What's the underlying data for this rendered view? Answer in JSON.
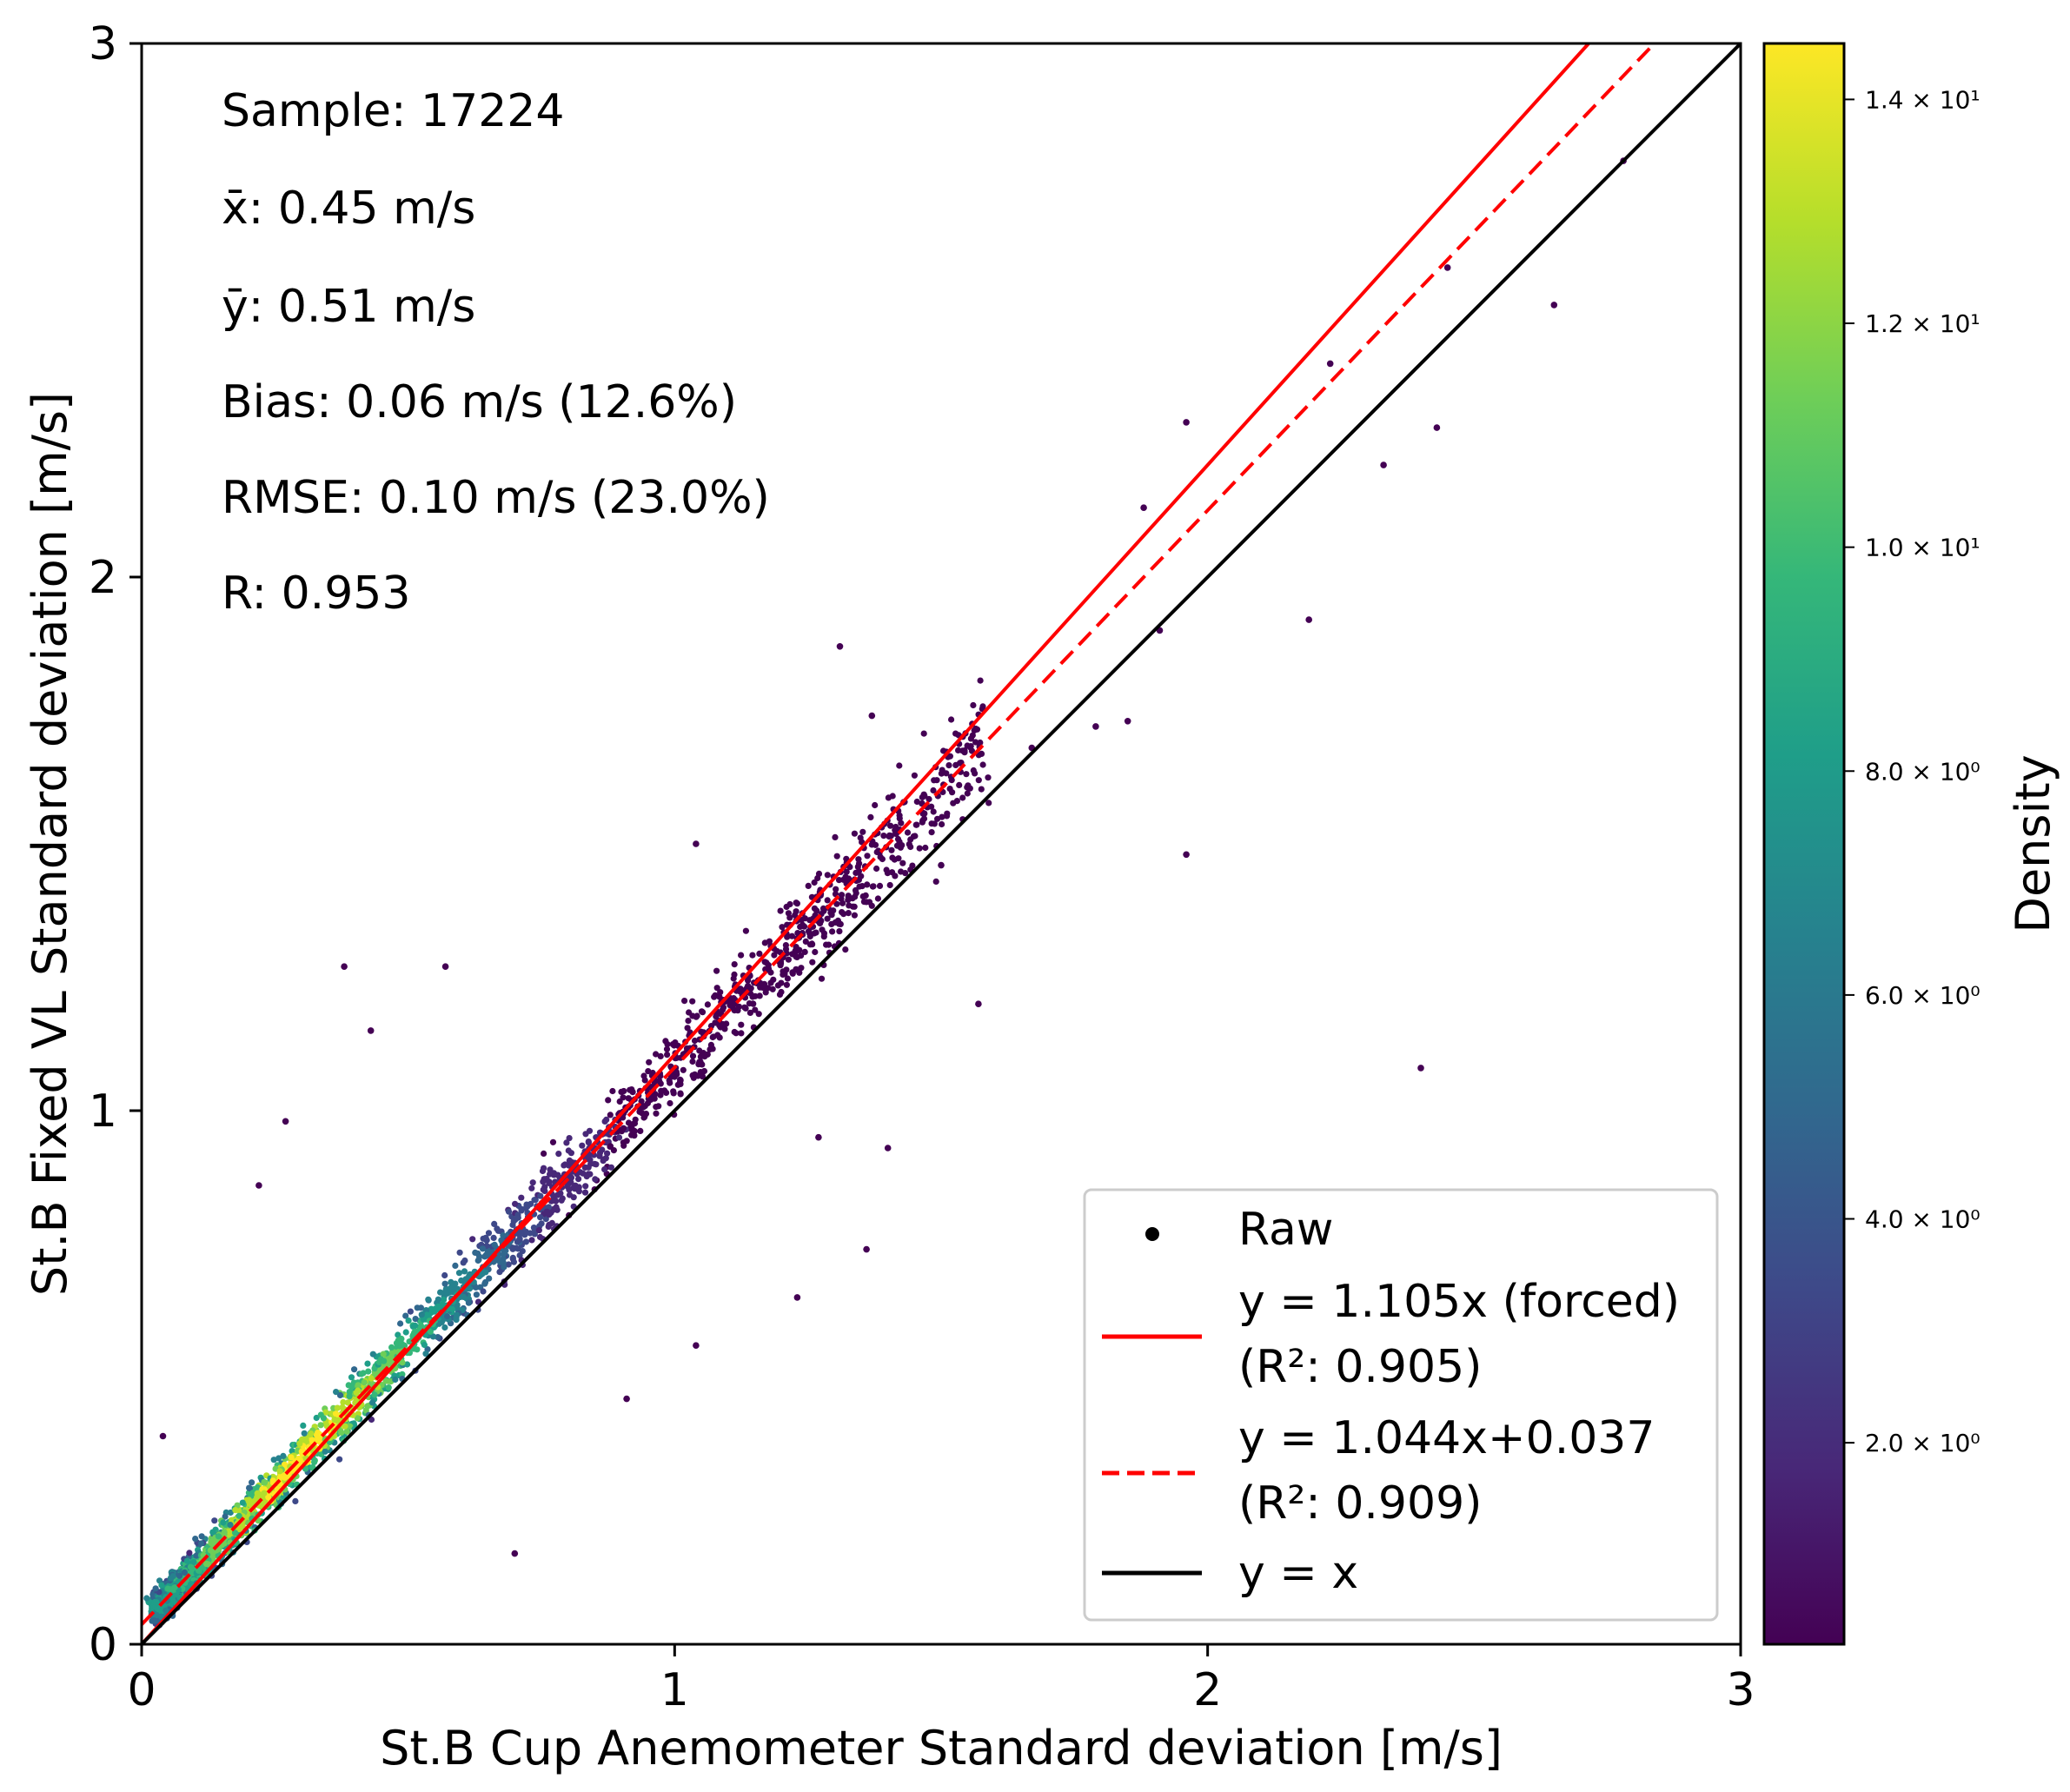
{
  "chart_data": {
    "type": "scatter",
    "subtype": "density-scatter",
    "xlabel": "St.B Cup Anemometer Standard deviation [m/s]",
    "ylabel": "St.B Fixed VL Standard deviation [m/s]",
    "xlim": [
      0,
      3
    ],
    "ylim": [
      0,
      3
    ],
    "xticks": [
      0,
      1,
      2,
      3
    ],
    "yticks": [
      0,
      1,
      2,
      3
    ],
    "xtick_labels": [
      "0",
      "1",
      "2",
      "3"
    ],
    "ytick_labels": [
      "0",
      "1",
      "2",
      "3"
    ],
    "stats": [
      {
        "label": "Sample",
        "value": "17224",
        "text": "Sample: 17224"
      },
      {
        "label": "x-bar",
        "value": "0.45 m/s",
        "text": "x̄: 0.45 m/s"
      },
      {
        "label": "y-bar",
        "value": "0.51 m/s",
        "text": "ȳ: 0.51 m/s"
      },
      {
        "label": "Bias",
        "value": "0.06 m/s (12.6%)",
        "text": "Bias: 0.06 m/s (12.6%)"
      },
      {
        "label": "RMSE",
        "value": "0.10 m/s (23.0%)",
        "text": "RMSE: 0.10 m/s (23.0%)"
      },
      {
        "label": "R",
        "value": "0.953",
        "text": "R: 0.953"
      }
    ],
    "series": [
      {
        "name": "Raw",
        "kind": "points",
        "color": "#440154"
      },
      {
        "name": "y = 1.105x (forced)",
        "kind": "line",
        "slope": 1.105,
        "intercept": 0,
        "r2": "0.905",
        "color": "#ff0000",
        "style": "solid"
      },
      {
        "name": "y = 1.044x+0.037",
        "kind": "line",
        "slope": 1.044,
        "intercept": 0.037,
        "r2": "0.909",
        "color": "#ff0000",
        "style": "dashed"
      },
      {
        "name": "y = x",
        "kind": "line",
        "slope": 1,
        "intercept": 0,
        "color": "#000000",
        "style": "solid"
      }
    ],
    "legend": {
      "placement": "lower-right",
      "entries": [
        {
          "label": "Raw",
          "sub": ""
        },
        {
          "label": "y = 1.105x (forced)",
          "sub": "(R²: 0.905)"
        },
        {
          "label": "y = 1.044x+0.037",
          "sub": "(R²: 0.909)"
        },
        {
          "label": "y = x",
          "sub": ""
        }
      ]
    },
    "colorbar": {
      "label": "Density",
      "min": 0.2,
      "max": 14.5,
      "ticks": [
        2,
        4,
        6,
        8,
        10,
        12,
        14
      ],
      "tick_labels": [
        "2.0 × 10⁰",
        "4.0 × 10⁰",
        "6.0 × 10⁰",
        "8.0 × 10⁰",
        "1.0 × 10¹",
        "1.2 × 10¹",
        "1.4 × 10¹"
      ],
      "colormap": "viridis",
      "colors": [
        "#440154",
        "#482878",
        "#3e4989",
        "#31688e",
        "#26828e",
        "#1f9e89",
        "#35b779",
        "#6ece58",
        "#b5de2b",
        "#fde725"
      ]
    },
    "outliers": [
      {
        "x": 0.7,
        "y": 0.17
      },
      {
        "x": 0.91,
        "y": 0.46
      },
      {
        "x": 1.04,
        "y": 0.56
      },
      {
        "x": 1.23,
        "y": 0.65
      },
      {
        "x": 1.36,
        "y": 0.74
      },
      {
        "x": 1.27,
        "y": 0.95
      },
      {
        "x": 1.4,
        "y": 0.93
      },
      {
        "x": 1.57,
        "y": 1.2
      },
      {
        "x": 1.96,
        "y": 1.48
      },
      {
        "x": 2.4,
        "y": 1.08
      },
      {
        "x": 2.19,
        "y": 1.92
      },
      {
        "x": 2.65,
        "y": 2.51
      },
      {
        "x": 2.33,
        "y": 2.21
      },
      {
        "x": 2.43,
        "y": 2.28
      },
      {
        "x": 1.31,
        "y": 1.87
      },
      {
        "x": 1.37,
        "y": 1.74
      },
      {
        "x": 0.38,
        "y": 1.27
      },
      {
        "x": 0.57,
        "y": 1.27
      },
      {
        "x": 0.43,
        "y": 1.15
      },
      {
        "x": 0.22,
        "y": 0.86
      },
      {
        "x": 0.04,
        "y": 0.39
      },
      {
        "x": 0.27,
        "y": 0.98
      },
      {
        "x": 1.04,
        "y": 1.5
      },
      {
        "x": 1.96,
        "y": 2.29
      },
      {
        "x": 1.88,
        "y": 2.13
      },
      {
        "x": 1.85,
        "y": 1.73
      },
      {
        "x": 1.91,
        "y": 1.9
      },
      {
        "x": 2.45,
        "y": 2.58
      },
      {
        "x": 2.78,
        "y": 2.78
      },
      {
        "x": 2.23,
        "y": 2.4
      },
      {
        "x": 1.79,
        "y": 1.72
      },
      {
        "x": 1.67,
        "y": 1.68
      },
      {
        "x": 1.5,
        "y": 1.46
      }
    ]
  }
}
